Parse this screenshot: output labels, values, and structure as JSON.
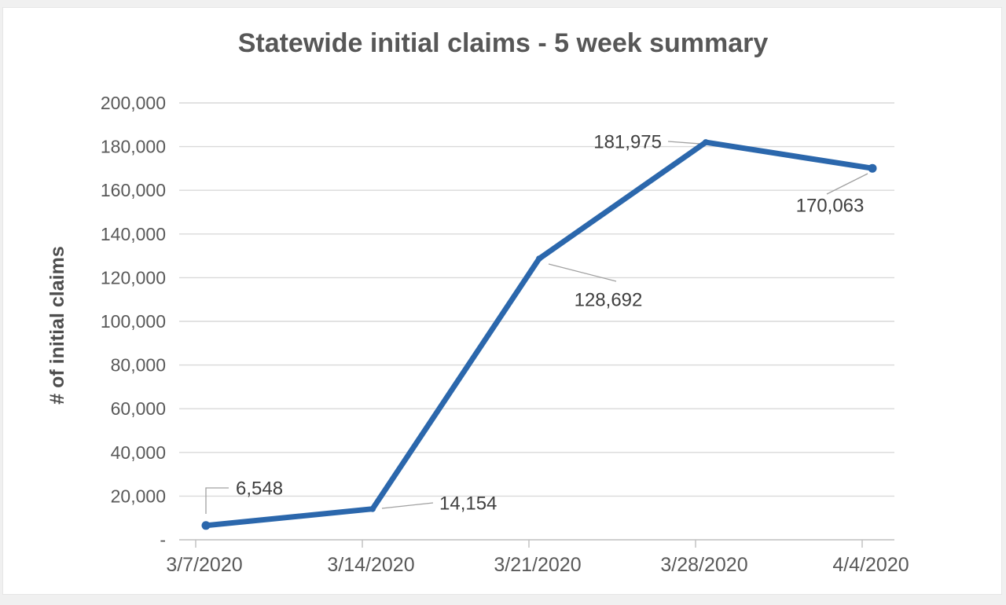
{
  "chart_data": {
    "type": "line",
    "title": "Statewide initial claims - 5 week summary",
    "ylabel": "# of initial claims",
    "xlabel": "",
    "categories": [
      "3/7/2020",
      "3/14/2020",
      "3/21/2020",
      "3/28/2020",
      "4/4/2020"
    ],
    "values": [
      6548,
      14154,
      128692,
      181975,
      170063
    ],
    "data_labels": [
      "6,548",
      "14,154",
      "128,692",
      "181,975",
      "170,063"
    ],
    "y_ticks": [
      0,
      20000,
      40000,
      60000,
      80000,
      100000,
      120000,
      140000,
      160000,
      180000,
      200000
    ],
    "y_tick_labels": [
      "-",
      "20,000",
      "40,000",
      "60,000",
      "80,000",
      "100,000",
      "120,000",
      "140,000",
      "160,000",
      "180,000",
      "200,000"
    ],
    "ylim": [
      0,
      200000
    ],
    "grid": true,
    "legend": "none",
    "colors": {
      "line": "#2b67ac",
      "marker": "#2b67ac",
      "gridline": "#d9d9d9",
      "axis": "#bfbfbf",
      "tick_text": "#595959",
      "data_label_text": "#3f3f3f",
      "title_text": "#575757",
      "leader_line": "#a0a0a0"
    }
  }
}
